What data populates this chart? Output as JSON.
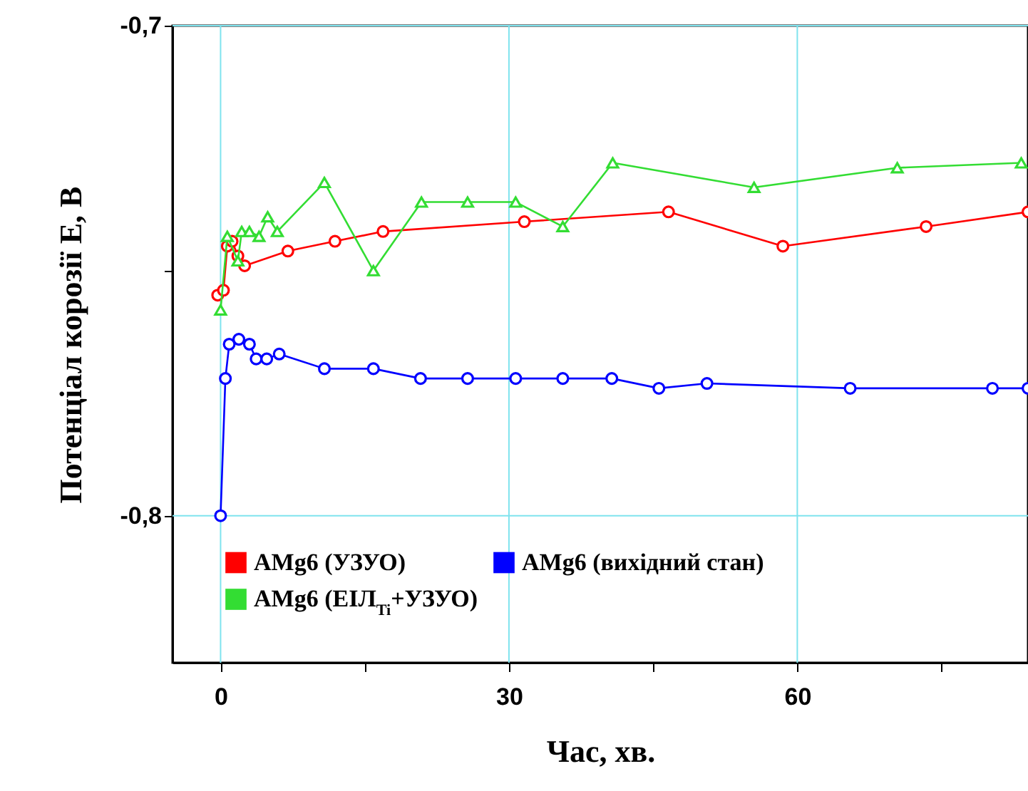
{
  "chart_data": {
    "type": "line",
    "xlabel": "Час, хв.",
    "ylabel": "Потенціал корозії E, В",
    "xlim": [
      -5,
      84
    ],
    "ylim": [
      -0.83,
      -0.7
    ],
    "xticks": [
      0,
      {
        "value": 15,
        "label": null
      },
      30,
      {
        "value": 45,
        "label": null
      },
      60,
      {
        "value": 75,
        "label": null
      }
    ],
    "yticks": [
      {
        "value": -0.7,
        "label": "-0,7"
      },
      {
        "value": -0.75,
        "label": null
      },
      {
        "value": -0.8,
        "label": "-0,8"
      }
    ],
    "grid": true,
    "legend": "bottom left",
    "line_style": "solid",
    "series": [
      {
        "name": "AMg6 (УЗУО)",
        "color": "#ff0000",
        "marker": "circle",
        "x": [
          -0.3,
          0.3,
          0.7,
          1.2,
          1.8,
          2.5,
          7,
          11.9,
          16.9,
          31.6,
          46.6,
          58.5,
          73.4,
          84
        ],
        "values": [
          -0.755,
          -0.754,
          -0.745,
          -0.744,
          -0.747,
          -0.749,
          -0.746,
          -0.744,
          -0.742,
          -0.74,
          -0.738,
          -0.745,
          -0.741,
          -0.738
        ]
      },
      {
        "name": "AMg6 (вихідний стан)",
        "color": "#0000ff",
        "marker": "circle",
        "x": [
          0,
          0.5,
          0.9,
          1.9,
          3,
          3.7,
          4.8,
          6.1,
          10.8,
          15.9,
          20.8,
          25.7,
          30.7,
          35.6,
          40.7,
          45.6,
          50.6,
          65.5,
          80.3,
          84
        ],
        "values": [
          -0.8,
          -0.772,
          -0.765,
          -0.764,
          -0.765,
          -0.768,
          -0.768,
          -0.767,
          -0.77,
          -0.77,
          -0.772,
          -0.772,
          -0.772,
          -0.772,
          -0.772,
          -0.774,
          -0.773,
          -0.774,
          -0.774,
          -0.774
        ]
      },
      {
        "name": "AMg6 (ЕІЛ$_{Ti}$+УЗУО)",
        "color": "#33dd33",
        "marker": "triangle",
        "x": [
          0,
          0.7,
          1.8,
          2.2,
          3,
          4,
          4.9,
          5.9,
          10.8,
          15.9,
          20.9,
          25.7,
          30.7,
          35.6,
          40.8,
          55.5,
          70.4,
          83.3
        ],
        "values": [
          -0.758,
          -0.743,
          -0.748,
          -0.742,
          -0.742,
          -0.743,
          -0.739,
          -0.742,
          -0.732,
          -0.75,
          -0.736,
          -0.736,
          -0.736,
          -0.741,
          -0.728,
          -0.733,
          -0.729,
          -0.728
        ]
      }
    ]
  }
}
